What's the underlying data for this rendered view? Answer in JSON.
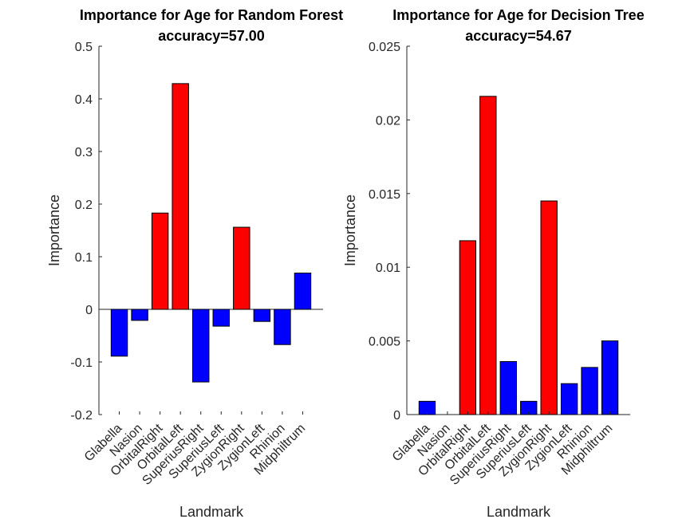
{
  "chart_data": [
    {
      "type": "bar",
      "title": "Importance for Age for Random Forest",
      "subtitle": "accuracy=57.00",
      "xlabel": "Landmark",
      "ylabel": "Importance",
      "ylim": [
        -0.2,
        0.5
      ],
      "yticks": [
        "-0.2",
        "-0.1",
        "0",
        "0.1",
        "0.2",
        "0.3",
        "0.4",
        "0.5"
      ],
      "categories": [
        "Glabella",
        "Nasion",
        "OrbitalRight",
        "OrbitalLeft",
        "SuperiusRight",
        "SuperiusLeft",
        "ZygionRight",
        "ZygionLeft",
        "Rhinion",
        "Midphiltrum"
      ],
      "values": [
        -0.089,
        -0.021,
        0.183,
        0.429,
        -0.138,
        -0.032,
        0.156,
        -0.023,
        -0.067,
        0.069
      ],
      "colors": [
        "#0000ff",
        "#0000ff",
        "#ff0000",
        "#ff0000",
        "#0000ff",
        "#0000ff",
        "#ff0000",
        "#0000ff",
        "#0000ff",
        "#0000ff"
      ],
      "grid": false
    },
    {
      "type": "bar",
      "title": "Importance for Age for Decision Tree",
      "subtitle": "accuracy=54.67",
      "xlabel": "Landmark",
      "ylabel": "Importance",
      "ylim": [
        0,
        0.025
      ],
      "yticks": [
        "0",
        "0.005",
        "0.01",
        "0.015",
        "0.02",
        "0.025"
      ],
      "categories": [
        "Glabella",
        "Nasion",
        "OrbitalRight",
        "OrbitalLeft",
        "SuperiusRight",
        "SuperiusLeft",
        "ZygionRight",
        "ZygionLeft",
        "Rhinion",
        "Midphiltrum"
      ],
      "values": [
        0.0009,
        0,
        0.0118,
        0.0216,
        0.0036,
        0.0009,
        0.0145,
        0.0021,
        0.0032,
        0.005
      ],
      "colors": [
        "#0000ff",
        "#0000ff",
        "#ff0000",
        "#ff0000",
        "#0000ff",
        "#0000ff",
        "#ff0000",
        "#0000ff",
        "#0000ff",
        "#0000ff"
      ],
      "grid": false
    }
  ]
}
